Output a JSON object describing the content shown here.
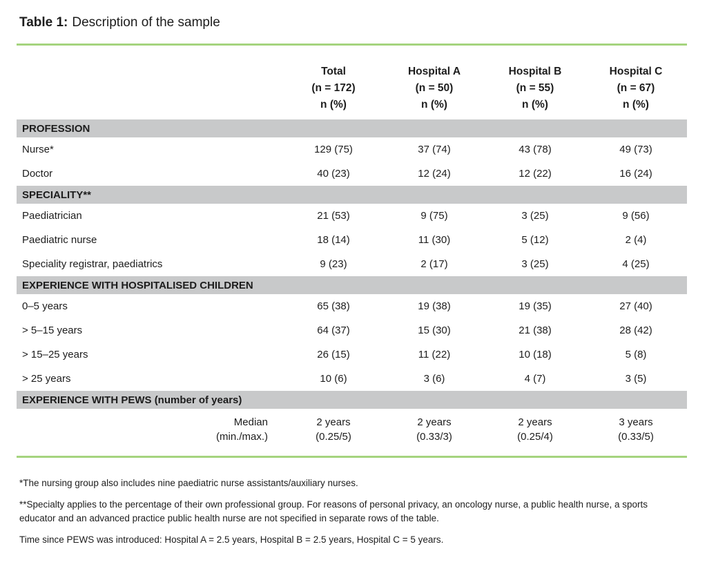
{
  "caption": {
    "label": "Table 1:",
    "text": "Description of the sample"
  },
  "table": {
    "columns": [
      "Total\n(n = 172)\nn (%)",
      "Hospital A\n(n = 50)\nn (%)",
      "Hospital B\n(n = 55)\nn (%)",
      "Hospital C\n(n = 67)\nn (%)"
    ],
    "sections": [
      {
        "header": "PROFESSION",
        "rows": [
          {
            "label": "Nurse*",
            "values": [
              "129 (75)",
              "37 (74)",
              "43 (78)",
              "49 (73)"
            ]
          },
          {
            "label": "Doctor",
            "values": [
              "40 (23)",
              "12 (24)",
              "12 (22)",
              "16 (24)"
            ]
          }
        ]
      },
      {
        "header": "SPECIALITY**",
        "rows": [
          {
            "label": "Paediatrician",
            "values": [
              "21 (53)",
              "9 (75)",
              "3 (25)",
              "9 (56)"
            ]
          },
          {
            "label": "Paediatric nurse",
            "values": [
              "18 (14)",
              "11 (30)",
              "5 (12)",
              "2 (4)"
            ]
          },
          {
            "label": "Speciality registrar, paediatrics",
            "values": [
              "9 (23)",
              "2 (17)",
              "3 (25)",
              "4 (25)"
            ]
          }
        ]
      },
      {
        "header": "EXPERIENCE WITH HOSPITALISED CHILDREN",
        "rows": [
          {
            "label": "0–5 years",
            "values": [
              "65 (38)",
              "19 (38)",
              "19 (35)",
              "27 (40)"
            ]
          },
          {
            "label": "> 5–15 years",
            "values": [
              "64 (37)",
              "15 (30)",
              "21 (38)",
              "28 (42)"
            ]
          },
          {
            "label": "> 15–25 years",
            "values": [
              "26 (15)",
              "11 (22)",
              "10 (18)",
              "5 (8)"
            ]
          },
          {
            "label": "> 25 years",
            "values": [
              "10 (6)",
              "3 (6)",
              "4 (7)",
              "3 (5)"
            ]
          }
        ]
      },
      {
        "header": "EXPERIENCE WITH PEWS (number of years)",
        "rows": [
          {
            "label": "Median\n(min./max.)",
            "values": [
              "2 years\n(0.25/5)",
              "2 years\n(0.33/3)",
              "2 years\n(0.25/4)",
              "3 years\n(0.33/5)"
            ]
          }
        ]
      }
    ]
  },
  "footnotes": [
    "*The nursing group also includes nine paediatric nurse assistants/auxiliary nurses.",
    "**Specialty applies to the percentage of their own professional group. For reasons of personal privacy, an oncology nurse, a public health nurse, a sports educator and an advanced practice public health nurse are not specified in separate rows of the table.",
    "Time since PEWS was introduced: Hospital A = 2.5 years, Hospital B = 2.5 years, Hospital C = 5 years."
  ],
  "colors": {
    "accent_green": "#A5D47E",
    "band_gray": "#C8C9CA"
  }
}
